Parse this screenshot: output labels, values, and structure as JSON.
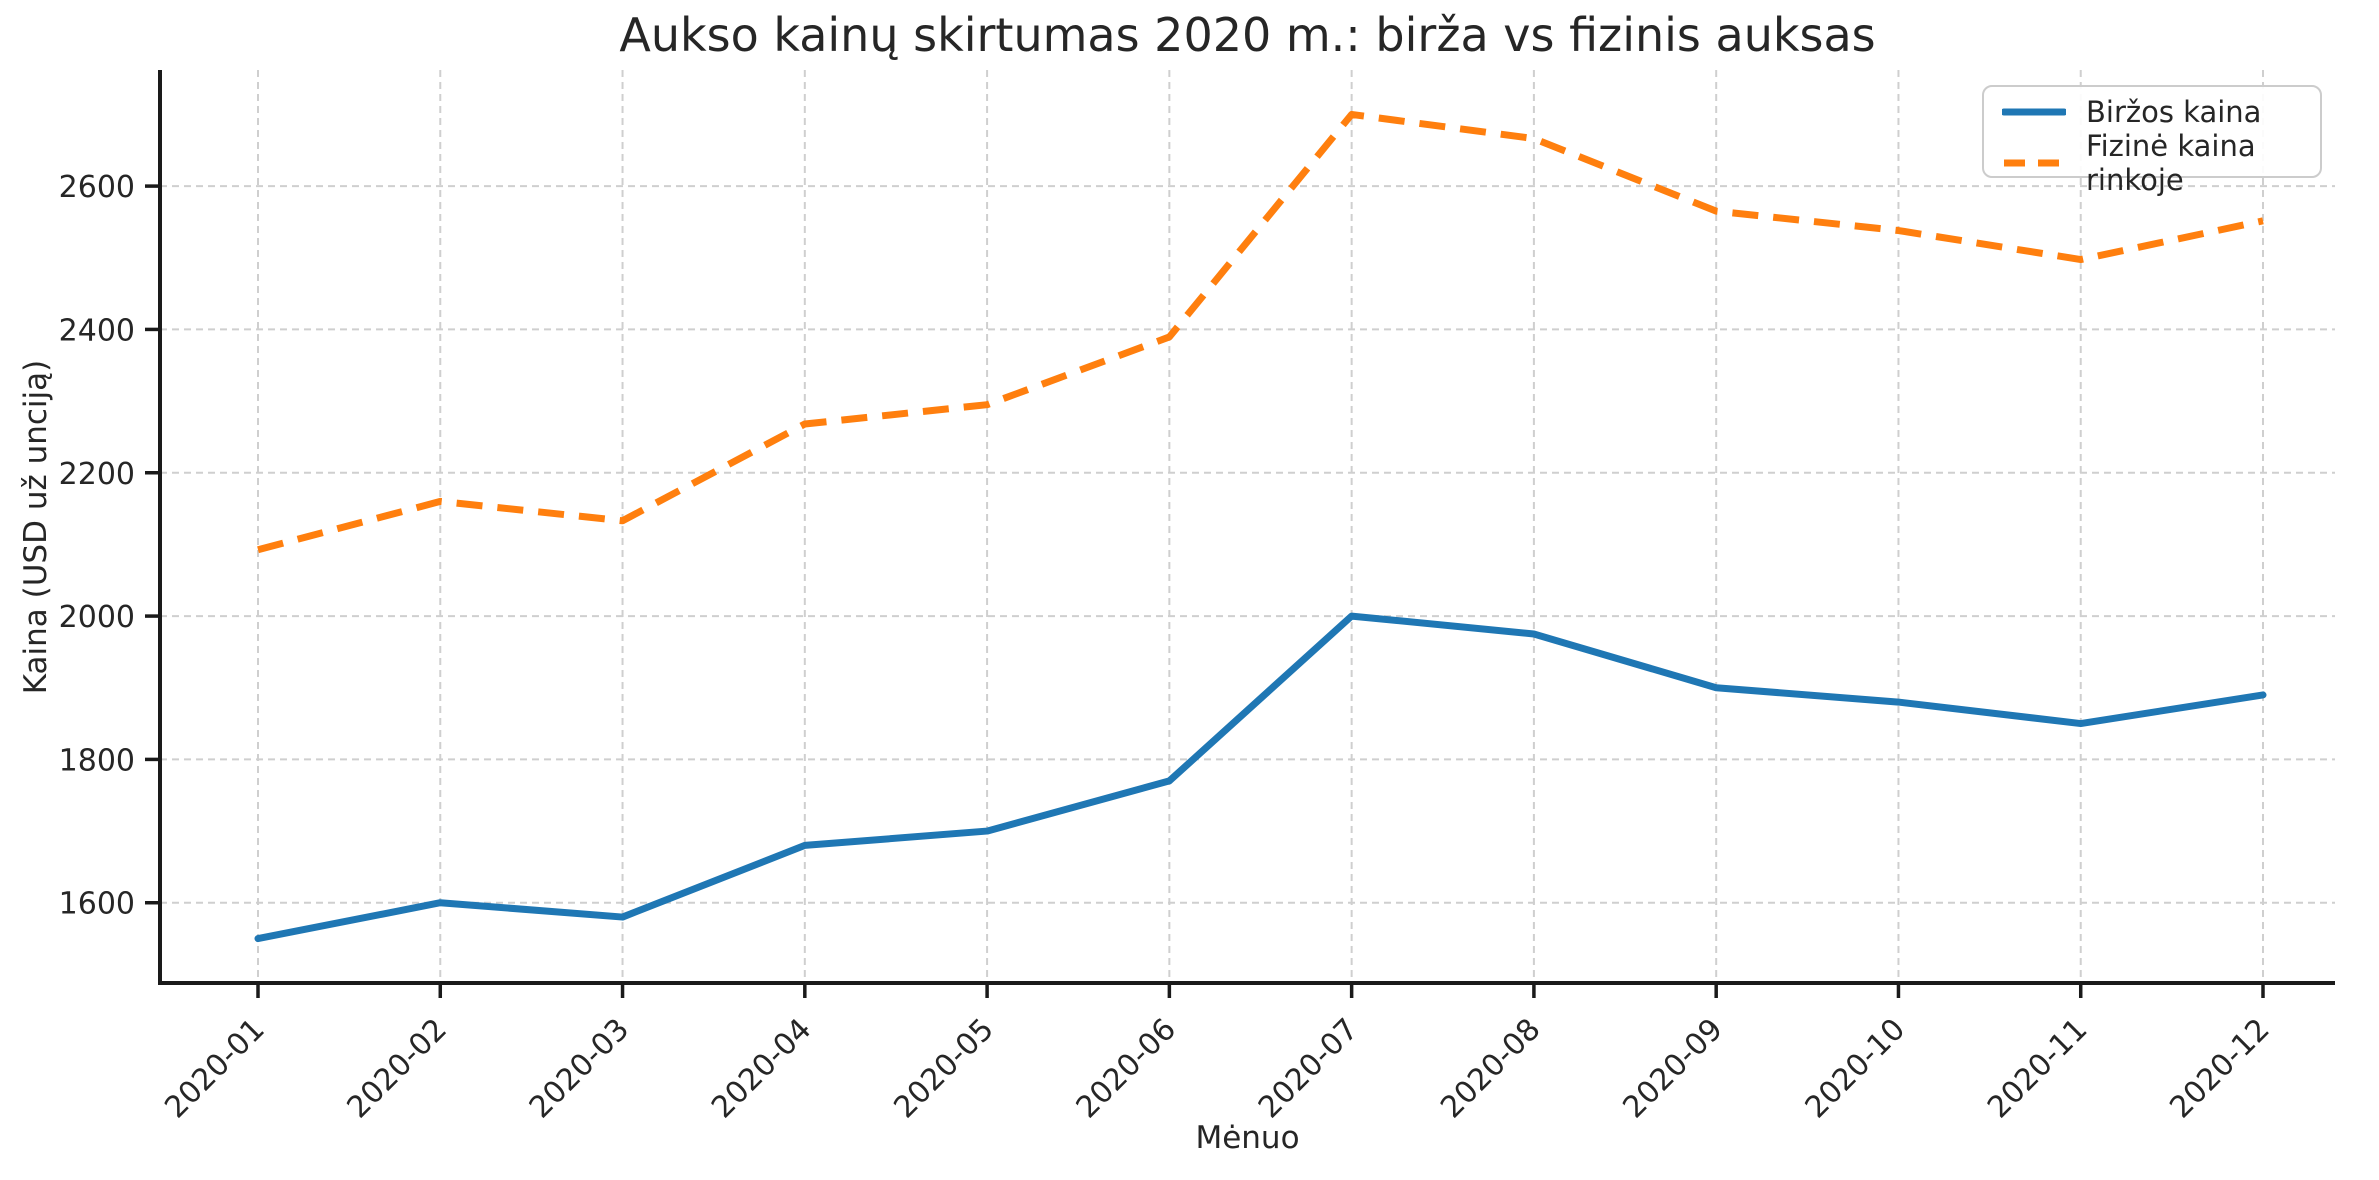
{
  "chart_data": {
    "type": "line",
    "title": "Aukso kainų skirtumas 2020 m.: birža vs fizinis auksas",
    "xlabel": "Mėnuo",
    "ylabel": "Kaina (USD už unciją)",
    "categories": [
      "2020-01",
      "2020-02",
      "2020-03",
      "2020-04",
      "2020-05",
      "2020-06",
      "2020-07",
      "2020-08",
      "2020-09",
      "2020-10",
      "2020-11",
      "2020-12"
    ],
    "series": [
      {
        "name": "Biržos kaina",
        "color": "#1f77b4",
        "line_style": "solid",
        "values": [
          1550,
          1600,
          1580,
          1680,
          1700,
          1770,
          2000,
          1975,
          1900,
          1880,
          1850,
          1890
        ]
      },
      {
        "name": "Fizinė kaina rinkoje",
        "color": "#ff7f0e",
        "line_style": "dashed",
        "values": [
          2092.5,
          2160,
          2133,
          2268,
          2295,
          2389.5,
          2700,
          2666.3,
          2565,
          2538,
          2497.5,
          2551.5
        ]
      }
    ],
    "yticks": [
      1600,
      1800,
      2000,
      2200,
      2400,
      2600
    ],
    "ylim": [
      1488,
      2762
    ],
    "grid": true,
    "grid_style": "dashed",
    "legend_position": "upper-right",
    "x_tick_rotation": 45
  },
  "colors": {
    "background": "#ffffff",
    "grid": "#cfcfcf",
    "axis": "#1a1a1a",
    "text": "#262626"
  }
}
